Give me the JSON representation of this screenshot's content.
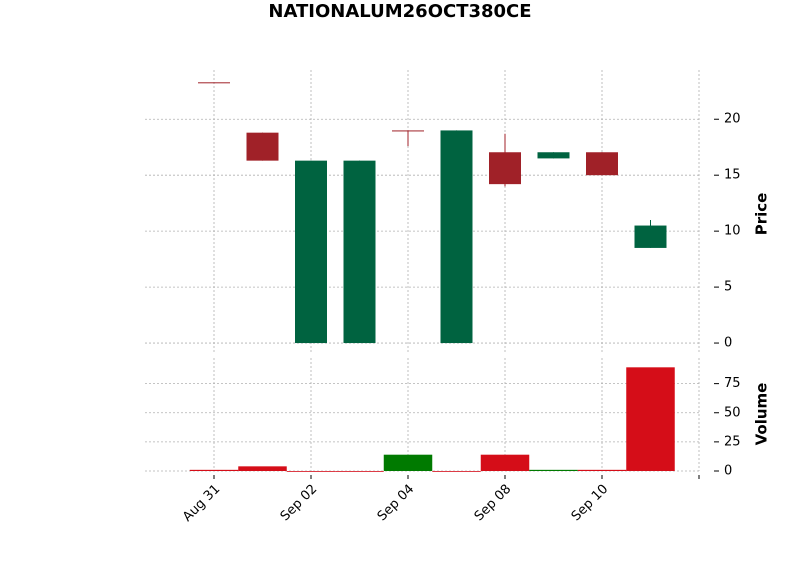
{
  "chart_data": {
    "type": "candlestick",
    "title": "NATIONALUM26OCT380CE",
    "x": [
      "Aug 31",
      null,
      "Sep 02",
      null,
      "Sep 04",
      null,
      "Sep 08",
      null,
      "Sep 10",
      null
    ],
    "open": [
      23.3,
      18.8,
      0,
      0,
      19.0,
      0,
      17.05,
      16.5,
      17.05,
      8.5
    ],
    "high": [
      23.3,
      18.8,
      16.3,
      16.3,
      19.0,
      19.0,
      18.7,
      17.05,
      17.05,
      11.0
    ],
    "low": [
      23.3,
      16.3,
      0,
      0,
      17.6,
      0,
      14.0,
      16.5,
      15.0,
      8.5
    ],
    "close": [
      23.3,
      16.3,
      16.3,
      16.3,
      19.0,
      19.0,
      14.2,
      17.05,
      15.0,
      10.5
    ],
    "volume": [
      1,
      4,
      0,
      0,
      14,
      0,
      14,
      1,
      1,
      89
    ],
    "ylabel": "Price",
    "y2label": "Volume",
    "ylim": [
      -0.8,
      24.4
    ],
    "yticks": [
      0,
      5,
      10,
      15,
      20
    ],
    "y2lim": [
      0,
      97
    ],
    "y2ticks": [
      0,
      25,
      50,
      75
    ],
    "up_color": "#006340",
    "down_color": "#a02128",
    "volume_up_color": "#007a00",
    "volume_down_color": "#d50d18",
    "grid": true
  }
}
